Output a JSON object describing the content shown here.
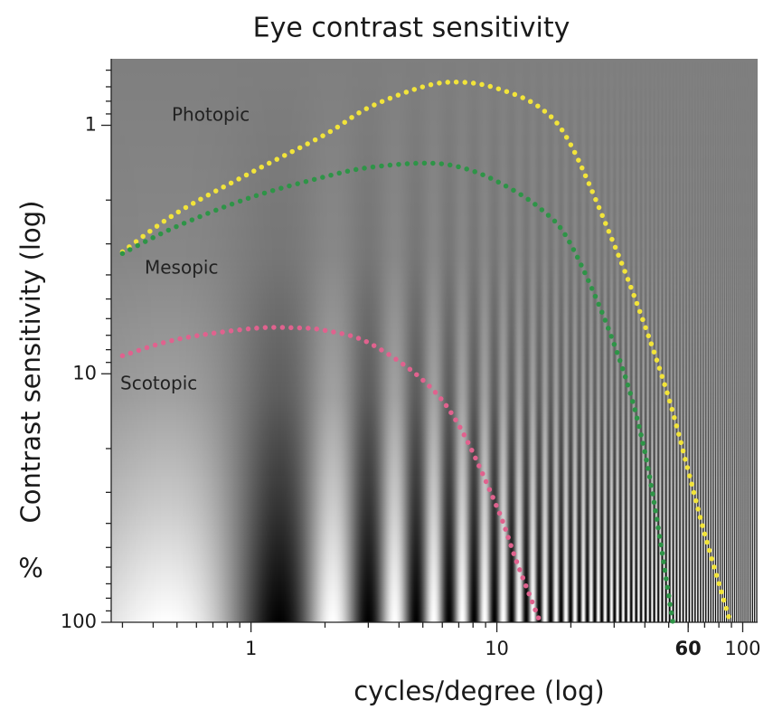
{
  "chart_data": {
    "type": "line",
    "title": "Eye contrast sensitivity",
    "x_label": "cycles/degree (log)",
    "y_label": "Contrast sensitivity (log)",
    "y_unit_label": "%",
    "x_log": true,
    "y_log": true,
    "xlim": [
      0.27,
      115
    ],
    "ylim": [
      100,
      0.54
    ],
    "xticks": [
      1,
      10,
      60,
      100
    ],
    "yticks": [
      1,
      10,
      100
    ],
    "xminorticks": [
      0.3,
      0.4,
      0.5,
      0.6,
      0.7,
      0.8,
      0.9,
      2,
      3,
      4,
      5,
      6,
      7,
      8,
      9,
      20,
      30,
      40,
      50,
      60,
      70,
      80,
      90
    ],
    "yminorticks": [
      0.6,
      0.7,
      0.8,
      0.9,
      2,
      3,
      4,
      5,
      6,
      7,
      8,
      9,
      20,
      30,
      40,
      50,
      60,
      70,
      80,
      90
    ],
    "series": [
      {
        "name": "Photopic",
        "color": "#f2e43a",
        "x": [
          0.3,
          0.5,
          1,
          2,
          3,
          5,
          7,
          10,
          15,
          20,
          30,
          40,
          50,
          60,
          70,
          89
        ],
        "values": [
          3.23,
          2.25,
          1.55,
          1.09,
          0.85,
          0.7,
          0.67,
          0.71,
          0.85,
          1.2,
          3.02,
          6.4,
          12.5,
          24.5,
          44,
          100
        ]
      },
      {
        "name": "Mesopic",
        "color": "#2e9447",
        "x": [
          0.3,
          0.5,
          1,
          2,
          3,
          5,
          7,
          10,
          15,
          20,
          30,
          40,
          52
        ],
        "values": [
          3.28,
          2.55,
          1.95,
          1.61,
          1.48,
          1.42,
          1.47,
          1.68,
          2.16,
          3.02,
          7.6,
          20.7,
          100
        ]
      },
      {
        "name": "Scotopic",
        "color": "#e0628e",
        "x": [
          0.3,
          0.5,
          1,
          1.5,
          2,
          3,
          5,
          7,
          10,
          12,
          15
        ],
        "values": [
          8.46,
          7.27,
          6.58,
          6.53,
          6.69,
          7.49,
          10.6,
          16.1,
          34.3,
          56.6,
          100
        ]
      }
    ]
  }
}
